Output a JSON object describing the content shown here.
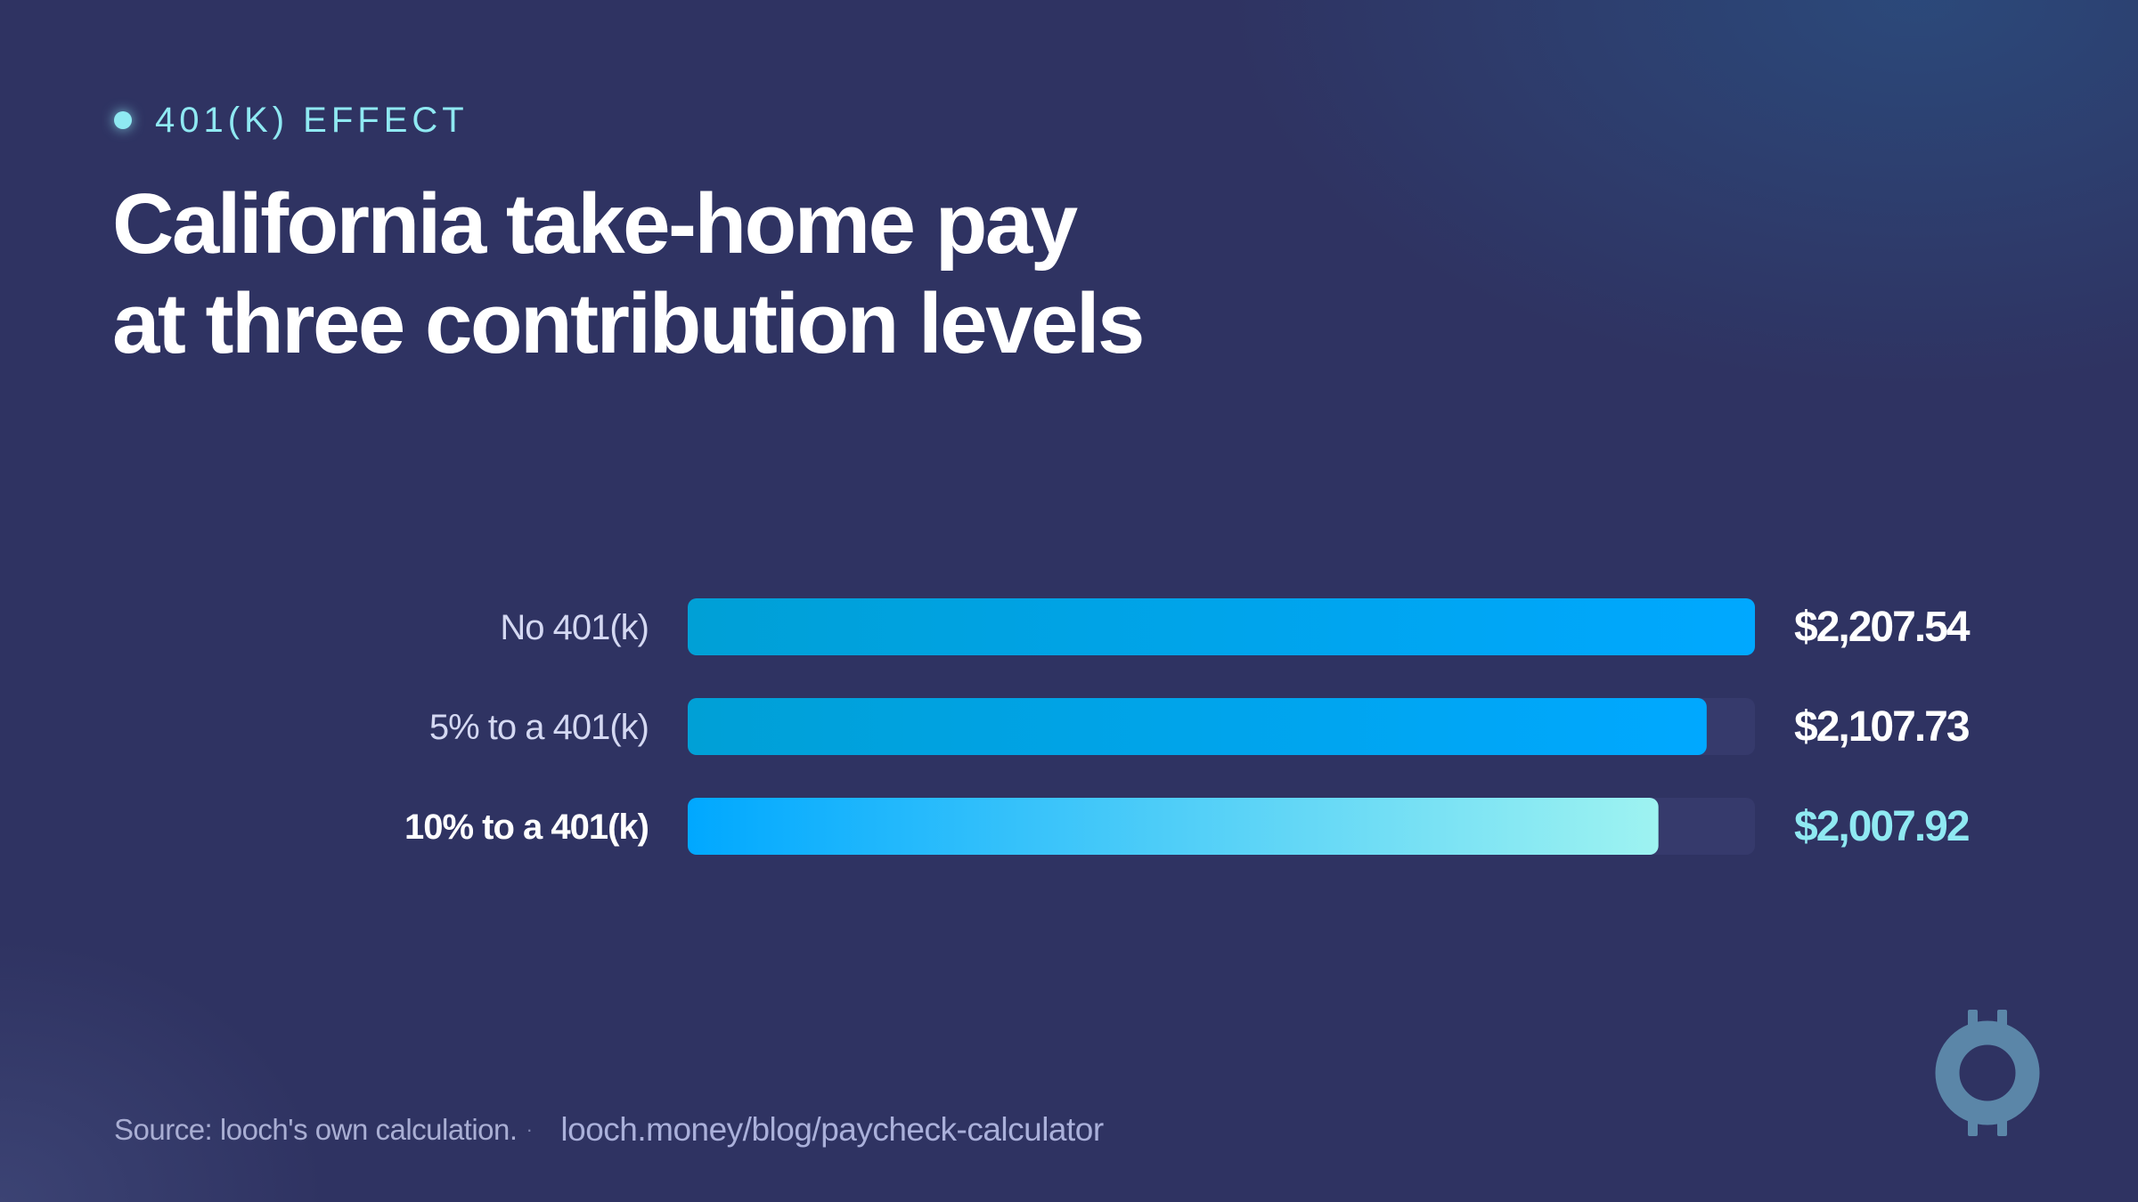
{
  "eyebrow": "401(K) EFFECT",
  "title": {
    "line1": "California take-home pay",
    "line2": "at three contribution levels"
  },
  "chart_data": {
    "type": "bar",
    "orientation": "horizontal",
    "categories": [
      "No 401(k)",
      "5% to a 401(k)",
      "10% to a 401(k)"
    ],
    "values": [
      2207.54,
      2107.73,
      2007.92
    ],
    "value_labels": [
      "$2,207.54",
      "$2,107.73",
      "$2,007.92"
    ],
    "xlim": [
      0,
      2207.54
    ],
    "highlight_index": 2,
    "grid": false,
    "legend": "none",
    "colors": {
      "bar_start": "#00a0d6",
      "bar_end": "#00a8ff",
      "highlight_start": "#00a8ff",
      "highlight_end": "#9ef3f1",
      "track": "#363a6c",
      "label": "#d4d8f2",
      "value": "#ffffff",
      "highlight_value": "#8fe9f2"
    }
  },
  "footer": {
    "source": "Source: looch's own calculation.",
    "separator": "·",
    "link": "looch.money/blog/paycheck-calculator"
  },
  "logo": {
    "icon": "looch-coin-logo-icon",
    "color": "#5b86a8"
  }
}
